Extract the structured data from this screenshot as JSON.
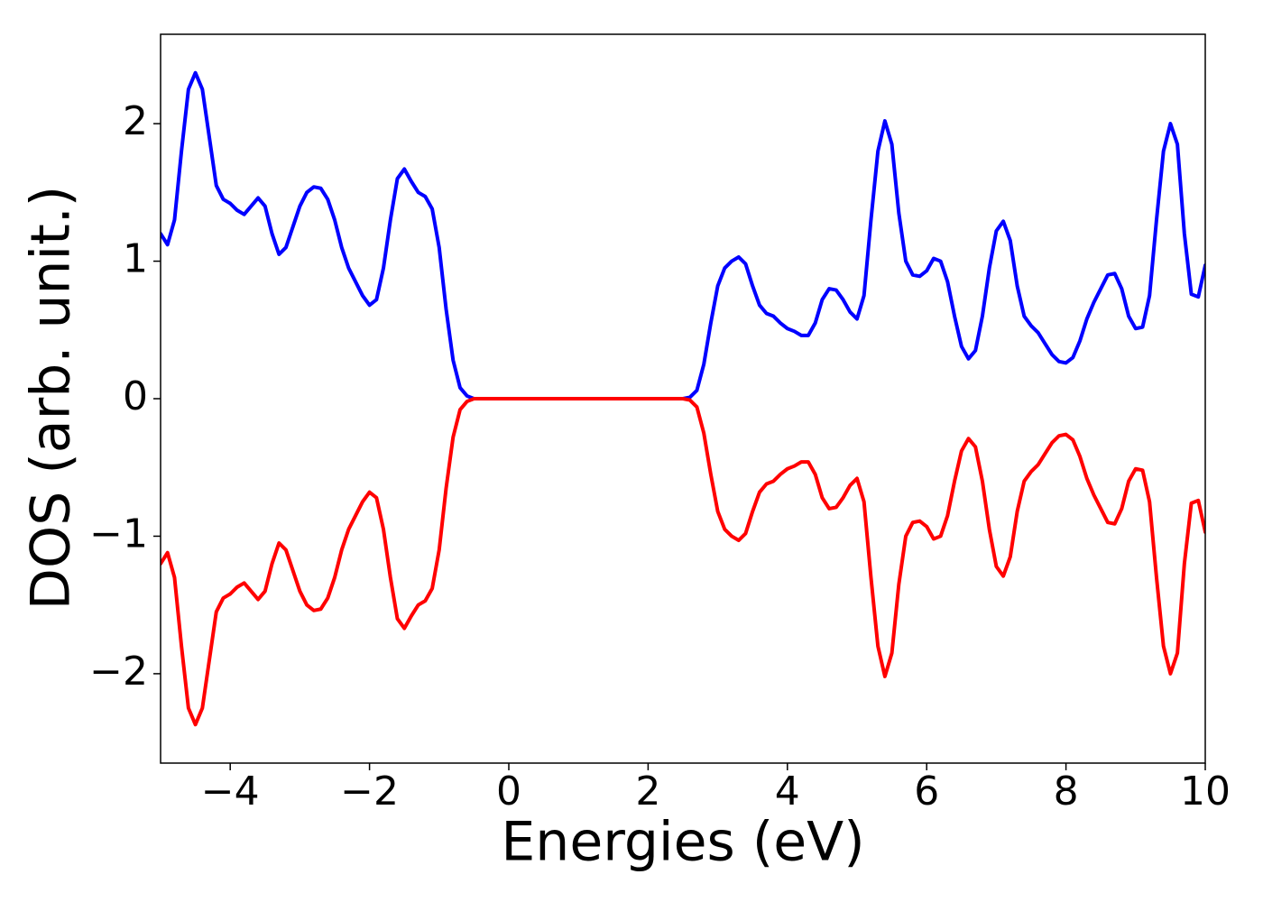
{
  "chart_data": {
    "type": "line",
    "xlabel": "Energies (eV)",
    "ylabel": "DOS (arb. unit.)",
    "x": [
      -5,
      -4.9,
      -4.8,
      -4.7,
      -4.6,
      -4.5,
      -4.4,
      -4.3,
      -4.2,
      -4.1,
      -4,
      -3.9,
      -3.8,
      -3.7,
      -3.6,
      -3.5,
      -3.4,
      -3.3,
      -3.2,
      -3.1,
      -3,
      -2.9,
      -2.8,
      -2.7,
      -2.6,
      -2.5,
      -2.4,
      -2.3,
      -2.2,
      -2.1,
      -2,
      -1.9,
      -1.8,
      -1.7,
      -1.6,
      -1.5,
      -1.4,
      -1.3,
      -1.2,
      -1.1,
      -1,
      -0.9,
      -0.8,
      -0.7,
      -0.6,
      -0.5,
      -0.4,
      -0.3,
      -0.2,
      -0.1,
      0,
      0.1,
      0.2,
      0.3,
      0.4,
      0.5,
      0.6,
      0.7,
      0.8,
      0.9,
      1,
      1.1,
      1.2,
      1.3,
      1.4,
      1.5,
      1.6,
      1.7,
      1.8,
      1.9,
      2,
      2.1,
      2.2,
      2.3,
      2.4,
      2.5,
      2.6,
      2.7,
      2.8,
      2.9,
      3,
      3.1,
      3.2,
      3.3,
      3.4,
      3.5,
      3.6,
      3.7,
      3.8,
      3.9,
      4,
      4.1,
      4.2,
      4.3,
      4.4,
      4.5,
      4.6,
      4.7,
      4.8,
      4.9,
      5,
      5.1,
      5.2,
      5.3,
      5.4,
      5.5,
      5.6,
      5.7,
      5.8,
      5.9,
      6,
      6.1,
      6.2,
      6.3,
      6.4,
      6.5,
      6.6,
      6.7,
      6.8,
      6.9,
      7,
      7.1,
      7.2,
      7.3,
      7.4,
      7.5,
      7.6,
      7.7,
      7.8,
      7.9,
      8,
      8.1,
      8.2,
      8.3,
      8.4,
      8.5,
      8.6,
      8.7,
      8.8,
      8.9,
      9,
      9.1,
      9.2,
      9.3,
      9.4,
      9.5,
      9.6,
      9.7,
      9.8,
      9.9,
      10
    ],
    "series": [
      {
        "color": "#0000ff",
        "values": [
          1.2,
          1.12,
          1.3,
          1.8,
          2.25,
          2.37,
          2.25,
          1.9,
          1.55,
          1.45,
          1.42,
          1.37,
          1.34,
          1.4,
          1.46,
          1.4,
          1.2,
          1.05,
          1.1,
          1.25,
          1.4,
          1.5,
          1.54,
          1.53,
          1.45,
          1.3,
          1.1,
          0.95,
          0.85,
          0.75,
          0.68,
          0.72,
          0.95,
          1.3,
          1.6,
          1.67,
          1.58,
          1.5,
          1.47,
          1.38,
          1.1,
          0.65,
          0.28,
          0.08,
          0.02,
          0,
          0,
          0,
          0,
          0,
          0,
          0,
          0,
          0,
          0,
          0,
          0,
          0,
          0,
          0,
          0,
          0,
          0,
          0,
          0,
          0,
          0,
          0,
          0,
          0,
          0,
          0,
          0,
          0,
          0,
          0,
          0.01,
          0.06,
          0.25,
          0.55,
          0.82,
          0.95,
          1.0,
          1.03,
          0.98,
          0.82,
          0.68,
          0.62,
          0.6,
          0.55,
          0.51,
          0.49,
          0.46,
          0.46,
          0.55,
          0.72,
          0.8,
          0.79,
          0.72,
          0.63,
          0.58,
          0.75,
          1.3,
          1.8,
          2.02,
          1.85,
          1.35,
          1.0,
          0.9,
          0.89,
          0.93,
          1.02,
          1.0,
          0.85,
          0.6,
          0.38,
          0.29,
          0.35,
          0.6,
          0.95,
          1.22,
          1.29,
          1.15,
          0.82,
          0.6,
          0.53,
          0.48,
          0.4,
          0.32,
          0.27,
          0.26,
          0.3,
          0.42,
          0.58,
          0.7,
          0.8,
          0.9,
          0.91,
          0.8,
          0.6,
          0.51,
          0.52,
          0.75,
          1.3,
          1.8,
          2.0,
          1.85,
          1.2,
          0.76,
          0.74,
          0.97
        ]
      },
      {
        "color": "#ff0000",
        "values": [
          -1.2,
          -1.12,
          -1.3,
          -1.8,
          -2.25,
          -2.37,
          -2.25,
          -1.9,
          -1.55,
          -1.45,
          -1.42,
          -1.37,
          -1.34,
          -1.4,
          -1.46,
          -1.4,
          -1.2,
          -1.05,
          -1.1,
          -1.25,
          -1.4,
          -1.5,
          -1.54,
          -1.53,
          -1.45,
          -1.3,
          -1.1,
          -0.95,
          -0.85,
          -0.75,
          -0.68,
          -0.72,
          -0.95,
          -1.3,
          -1.6,
          -1.67,
          -1.58,
          -1.5,
          -1.47,
          -1.38,
          -1.1,
          -0.65,
          -0.28,
          -0.08,
          -0.02,
          0,
          0,
          0,
          0,
          0,
          0,
          0,
          0,
          0,
          0,
          0,
          0,
          0,
          0,
          0,
          0,
          0,
          0,
          0,
          0,
          0,
          0,
          0,
          0,
          0,
          0,
          0,
          0,
          0,
          0,
          0,
          -0.01,
          -0.06,
          -0.25,
          -0.55,
          -0.82,
          -0.95,
          -1.0,
          -1.03,
          -0.98,
          -0.82,
          -0.68,
          -0.62,
          -0.6,
          -0.55,
          -0.51,
          -0.49,
          -0.46,
          -0.46,
          -0.55,
          -0.72,
          -0.8,
          -0.79,
          -0.72,
          -0.63,
          -0.58,
          -0.75,
          -1.3,
          -1.8,
          -2.02,
          -1.85,
          -1.35,
          -1.0,
          -0.9,
          -0.89,
          -0.93,
          -1.02,
          -1.0,
          -0.85,
          -0.6,
          -0.38,
          -0.29,
          -0.35,
          -0.6,
          -0.95,
          -1.22,
          -1.29,
          -1.15,
          -0.82,
          -0.6,
          -0.53,
          -0.48,
          -0.4,
          -0.32,
          -0.27,
          -0.26,
          -0.3,
          -0.42,
          -0.58,
          -0.7,
          -0.8,
          -0.9,
          -0.91,
          -0.8,
          -0.6,
          -0.51,
          -0.52,
          -0.75,
          -1.3,
          -1.8,
          -2.0,
          -1.85,
          -1.2,
          -0.76,
          -0.74,
          -0.97
        ]
      }
    ],
    "xlim": [
      -5,
      10
    ],
    "xticks": [
      {
        "value": -4,
        "label": "−4"
      },
      {
        "value": -2,
        "label": "−2"
      },
      0,
      2,
      4,
      6,
      8,
      10
    ],
    "ylim": [
      -2.65,
      2.65
    ],
    "yticks": [
      {
        "value": -2,
        "label": "−2"
      },
      {
        "value": -1,
        "label": "−1"
      },
      0,
      1,
      2
    ]
  }
}
